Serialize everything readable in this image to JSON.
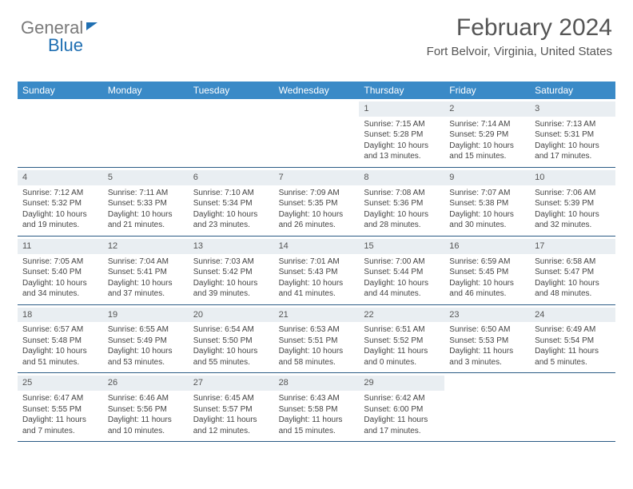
{
  "brand": {
    "part1": "General",
    "part2": "Blue"
  },
  "title": "February 2024",
  "location": "Fort Belvoir, Virginia, United States",
  "day_labels": [
    "Sunday",
    "Monday",
    "Tuesday",
    "Wednesday",
    "Thursday",
    "Friday",
    "Saturday"
  ],
  "colors": {
    "header_bg": "#3a8ac7",
    "header_text": "#ffffff",
    "daynum_bg": "#e9eef2",
    "week_border": "#2a5b85",
    "body_text": "#444444",
    "title_text": "#555555"
  },
  "weeks": [
    [
      {
        "n": "",
        "empty": true
      },
      {
        "n": "",
        "empty": true
      },
      {
        "n": "",
        "empty": true
      },
      {
        "n": "",
        "empty": true
      },
      {
        "n": "1",
        "sr": "7:15 AM",
        "ss": "5:28 PM",
        "dl": "10 hours and 13 minutes."
      },
      {
        "n": "2",
        "sr": "7:14 AM",
        "ss": "5:29 PM",
        "dl": "10 hours and 15 minutes."
      },
      {
        "n": "3",
        "sr": "7:13 AM",
        "ss": "5:31 PM",
        "dl": "10 hours and 17 minutes."
      }
    ],
    [
      {
        "n": "4",
        "sr": "7:12 AM",
        "ss": "5:32 PM",
        "dl": "10 hours and 19 minutes."
      },
      {
        "n": "5",
        "sr": "7:11 AM",
        "ss": "5:33 PM",
        "dl": "10 hours and 21 minutes."
      },
      {
        "n": "6",
        "sr": "7:10 AM",
        "ss": "5:34 PM",
        "dl": "10 hours and 23 minutes."
      },
      {
        "n": "7",
        "sr": "7:09 AM",
        "ss": "5:35 PM",
        "dl": "10 hours and 26 minutes."
      },
      {
        "n": "8",
        "sr": "7:08 AM",
        "ss": "5:36 PM",
        "dl": "10 hours and 28 minutes."
      },
      {
        "n": "9",
        "sr": "7:07 AM",
        "ss": "5:38 PM",
        "dl": "10 hours and 30 minutes."
      },
      {
        "n": "10",
        "sr": "7:06 AM",
        "ss": "5:39 PM",
        "dl": "10 hours and 32 minutes."
      }
    ],
    [
      {
        "n": "11",
        "sr": "7:05 AM",
        "ss": "5:40 PM",
        "dl": "10 hours and 34 minutes."
      },
      {
        "n": "12",
        "sr": "7:04 AM",
        "ss": "5:41 PM",
        "dl": "10 hours and 37 minutes."
      },
      {
        "n": "13",
        "sr": "7:03 AM",
        "ss": "5:42 PM",
        "dl": "10 hours and 39 minutes."
      },
      {
        "n": "14",
        "sr": "7:01 AM",
        "ss": "5:43 PM",
        "dl": "10 hours and 41 minutes."
      },
      {
        "n": "15",
        "sr": "7:00 AM",
        "ss": "5:44 PM",
        "dl": "10 hours and 44 minutes."
      },
      {
        "n": "16",
        "sr": "6:59 AM",
        "ss": "5:45 PM",
        "dl": "10 hours and 46 minutes."
      },
      {
        "n": "17",
        "sr": "6:58 AM",
        "ss": "5:47 PM",
        "dl": "10 hours and 48 minutes."
      }
    ],
    [
      {
        "n": "18",
        "sr": "6:57 AM",
        "ss": "5:48 PM",
        "dl": "10 hours and 51 minutes."
      },
      {
        "n": "19",
        "sr": "6:55 AM",
        "ss": "5:49 PM",
        "dl": "10 hours and 53 minutes."
      },
      {
        "n": "20",
        "sr": "6:54 AM",
        "ss": "5:50 PM",
        "dl": "10 hours and 55 minutes."
      },
      {
        "n": "21",
        "sr": "6:53 AM",
        "ss": "5:51 PM",
        "dl": "10 hours and 58 minutes."
      },
      {
        "n": "22",
        "sr": "6:51 AM",
        "ss": "5:52 PM",
        "dl": "11 hours and 0 minutes."
      },
      {
        "n": "23",
        "sr": "6:50 AM",
        "ss": "5:53 PM",
        "dl": "11 hours and 3 minutes."
      },
      {
        "n": "24",
        "sr": "6:49 AM",
        "ss": "5:54 PM",
        "dl": "11 hours and 5 minutes."
      }
    ],
    [
      {
        "n": "25",
        "sr": "6:47 AM",
        "ss": "5:55 PM",
        "dl": "11 hours and 7 minutes."
      },
      {
        "n": "26",
        "sr": "6:46 AM",
        "ss": "5:56 PM",
        "dl": "11 hours and 10 minutes."
      },
      {
        "n": "27",
        "sr": "6:45 AM",
        "ss": "5:57 PM",
        "dl": "11 hours and 12 minutes."
      },
      {
        "n": "28",
        "sr": "6:43 AM",
        "ss": "5:58 PM",
        "dl": "11 hours and 15 minutes."
      },
      {
        "n": "29",
        "sr": "6:42 AM",
        "ss": "6:00 PM",
        "dl": "11 hours and 17 minutes."
      },
      {
        "n": "",
        "empty": true
      },
      {
        "n": "",
        "empty": true
      }
    ]
  ],
  "labels": {
    "sunrise": "Sunrise:",
    "sunset": "Sunset:",
    "daylight": "Daylight:"
  }
}
